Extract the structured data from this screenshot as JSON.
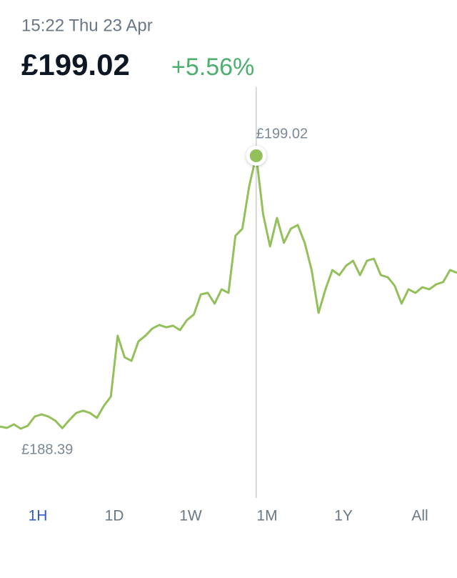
{
  "header": {
    "timestamp": "15:22 Thu 23 Apr",
    "price": "£199.02",
    "change": "+5.56%"
  },
  "chart_data": {
    "type": "line",
    "color": "#93c05a",
    "selected_index": 37,
    "max_label": "£199.02",
    "min_label": "£188.39",
    "values": [
      188.47,
      188.42,
      188.56,
      188.39,
      188.5,
      188.86,
      188.95,
      188.86,
      188.7,
      188.41,
      188.72,
      189.0,
      189.09,
      189.0,
      188.81,
      189.28,
      189.64,
      192.01,
      191.17,
      191.03,
      191.79,
      192.01,
      192.29,
      192.43,
      192.34,
      192.4,
      192.23,
      192.62,
      192.84,
      193.62,
      193.68,
      193.26,
      193.82,
      193.68,
      195.9,
      196.18,
      197.85,
      199.02,
      196.74,
      195.49,
      196.6,
      195.63,
      196.18,
      196.32,
      195.63,
      194.57,
      192.9,
      193.82,
      194.57,
      194.37,
      194.74,
      194.93,
      194.37,
      194.93,
      195.01,
      194.37,
      194.29,
      193.96,
      193.26,
      193.82,
      193.68,
      193.9,
      193.82,
      194.01,
      194.1,
      194.57,
      194.46
    ]
  },
  "tabs": {
    "items": [
      "1H",
      "1D",
      "1W",
      "1M",
      "1Y",
      "All"
    ],
    "selected": 0
  }
}
